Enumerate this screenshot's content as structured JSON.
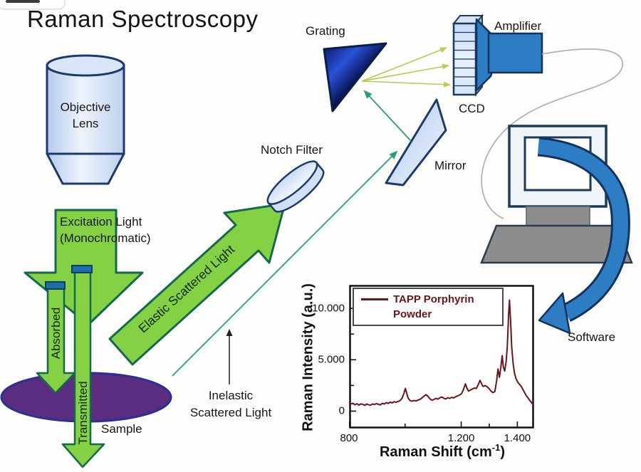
{
  "title": "Raman Spectroscopy",
  "colors": {
    "arrow_green": "#84d144",
    "arrow_green_border": "#15694d",
    "sample_purple": "#5b2d80",
    "sample_border": "#2b3192",
    "device_blue": "#2d7dc4",
    "navy_outline": "#13335e",
    "teal_ray": "#2a9d74",
    "yellow_ray": "#b6cc52",
    "spectrum_maroon": "#6d1418",
    "monitor_gray": "#8d8d8d",
    "blue_cap": "#1d6fa8"
  },
  "labels": {
    "objective_lens": "Objective Lens",
    "grating": "Grating",
    "amplifier": "Amplifier",
    "ccd": "CCD",
    "notch_filter": "Notch Filter",
    "mirror": "Mirror",
    "software": "Software",
    "sample": "Sample",
    "excitation_line1": "Excitation Light",
    "excitation_line2": "(Monochromatic)",
    "elastic_arrow": "Elastic Scattered Light",
    "inelastic_line1": "Inelastic",
    "inelastic_line2": "Scattered Light",
    "absorbed_arrow": "Absorbed",
    "transmitted_arrow": "Transmitted"
  },
  "chart_data": {
    "type": "line",
    "title": "",
    "ylabel": "Raman Intensity (a.u.)",
    "xlabel_pre": "Raman Shift (cm",
    "xlabel_sup": "-1",
    "xlabel_post": ")",
    "xlim": [
      800,
      1460
    ],
    "ylim": [
      -1700,
      12300
    ],
    "grid": false,
    "legend_position": "top-left",
    "xticks": [
      {
        "v": 800,
        "label": "800"
      },
      {
        "v": 1000,
        "label": ""
      },
      {
        "v": 1200,
        "label": "1.200"
      },
      {
        "v": 1300,
        "label": ""
      },
      {
        "v": 1400,
        "label": "1.400"
      }
    ],
    "yticks": [
      {
        "v": 0,
        "label": "0"
      },
      {
        "v": 2500,
        "label": ""
      },
      {
        "v": 5000,
        "label": "5.000"
      },
      {
        "v": 7500,
        "label": ""
      },
      {
        "v": 10000,
        "label": "10.000"
      }
    ],
    "series": [
      {
        "name": "TAPP Porphyrin Powder",
        "color": "#6d1418",
        "points": [
          [
            800,
            820
          ],
          [
            807,
            700
          ],
          [
            814,
            760
          ],
          [
            821,
            620
          ],
          [
            828,
            720
          ],
          [
            835,
            580
          ],
          [
            842,
            700
          ],
          [
            849,
            660
          ],
          [
            856,
            560
          ],
          [
            863,
            690
          ],
          [
            870,
            610
          ],
          [
            877,
            570
          ],
          [
            884,
            700
          ],
          [
            891,
            640
          ],
          [
            898,
            730
          ],
          [
            905,
            660
          ],
          [
            912,
            600
          ],
          [
            919,
            760
          ],
          [
            926,
            690
          ],
          [
            933,
            820
          ],
          [
            940,
            750
          ],
          [
            947,
            880
          ],
          [
            954,
            800
          ],
          [
            961,
            920
          ],
          [
            968,
            860
          ],
          [
            975,
            940
          ],
          [
            982,
            1020
          ],
          [
            989,
            1250
          ],
          [
            996,
            1750
          ],
          [
            1001,
            2200
          ],
          [
            1006,
            1700
          ],
          [
            1011,
            1250
          ],
          [
            1018,
            1020
          ],
          [
            1025,
            960
          ],
          [
            1032,
            1040
          ],
          [
            1039,
            980
          ],
          [
            1046,
            1080
          ],
          [
            1053,
            1150
          ],
          [
            1060,
            1280
          ],
          [
            1068,
            1480
          ],
          [
            1075,
            1600
          ],
          [
            1082,
            1420
          ],
          [
            1089,
            1180
          ],
          [
            1096,
            1060
          ],
          [
            1103,
            1140
          ],
          [
            1110,
            1240
          ],
          [
            1117,
            1160
          ],
          [
            1124,
            1300
          ],
          [
            1131,
            1380
          ],
          [
            1138,
            1250
          ],
          [
            1145,
            1180
          ],
          [
            1152,
            1300
          ],
          [
            1159,
            1240
          ],
          [
            1166,
            1340
          ],
          [
            1173,
            1280
          ],
          [
            1180,
            1400
          ],
          [
            1187,
            1480
          ],
          [
            1194,
            1560
          ],
          [
            1201,
            1700
          ],
          [
            1208,
            2100
          ],
          [
            1215,
            2650
          ],
          [
            1220,
            2250
          ],
          [
            1226,
            1950
          ],
          [
            1233,
            2050
          ],
          [
            1240,
            2150
          ],
          [
            1247,
            2250
          ],
          [
            1254,
            2200
          ],
          [
            1261,
            2600
          ],
          [
            1267,
            3000
          ],
          [
            1272,
            2700
          ],
          [
            1278,
            2400
          ],
          [
            1285,
            2480
          ],
          [
            1292,
            2380
          ],
          [
            1299,
            2200
          ],
          [
            1306,
            1950
          ],
          [
            1313,
            1800
          ],
          [
            1320,
            1900
          ],
          [
            1326,
            2900
          ],
          [
            1331,
            4100
          ],
          [
            1336,
            3300
          ],
          [
            1341,
            4200
          ],
          [
            1346,
            5400
          ],
          [
            1350,
            4300
          ],
          [
            1355,
            3900
          ],
          [
            1360,
            4800
          ],
          [
            1364,
            6200
          ],
          [
            1369,
            9500
          ],
          [
            1372,
            10800
          ],
          [
            1376,
            8800
          ],
          [
            1380,
            6200
          ],
          [
            1385,
            4600
          ],
          [
            1390,
            3700
          ],
          [
            1396,
            3100
          ],
          [
            1402,
            2800
          ],
          [
            1408,
            2600
          ],
          [
            1414,
            2400
          ],
          [
            1420,
            2100
          ],
          [
            1426,
            1800
          ],
          [
            1432,
            1500
          ],
          [
            1438,
            1300
          ],
          [
            1444,
            1050
          ],
          [
            1450,
            850
          ],
          [
            1456,
            650
          ],
          [
            1460,
            600
          ]
        ]
      }
    ]
  }
}
